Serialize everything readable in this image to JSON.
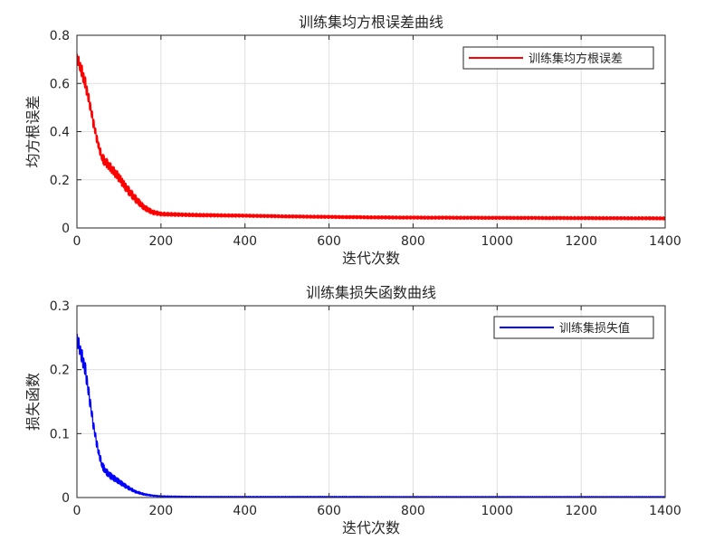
{
  "chart_data": [
    {
      "type": "line",
      "title": "训练集均方根误差曲线",
      "xlabel": "迭代次数",
      "ylabel": "均方根误差",
      "xlim": [
        0,
        1400
      ],
      "ylim": [
        0,
        0.8
      ],
      "xticks": [
        0,
        200,
        400,
        600,
        800,
        1000,
        1200,
        1400
      ],
      "yticks": [
        0,
        0.2,
        0.4,
        0.6,
        0.8
      ],
      "grid": true,
      "legend": "top-right",
      "series": [
        {
          "name": "训练集均方根误差",
          "color": "#ff0000",
          "x": [
            0,
            10,
            20,
            30,
            40,
            50,
            60,
            70,
            80,
            100,
            120,
            140,
            160,
            180,
            200,
            250,
            300,
            400,
            500,
            600,
            700,
            800,
            1000,
            1200,
            1400
          ],
          "y": [
            0.71,
            0.66,
            0.6,
            0.52,
            0.43,
            0.35,
            0.29,
            0.27,
            0.25,
            0.21,
            0.16,
            0.12,
            0.085,
            0.065,
            0.058,
            0.055,
            0.053,
            0.051,
            0.048,
            0.046,
            0.044,
            0.043,
            0.042,
            0.041,
            0.04
          ],
          "noise": [
            0.02,
            0.03,
            0.03,
            0.025,
            0.025,
            0.02,
            0.02,
            0.02,
            0.02,
            0.02,
            0.018,
            0.016,
            0.012,
            0.01,
            0.008,
            0.007,
            0.007,
            0.006,
            0.006,
            0.006,
            0.006,
            0.006,
            0.006,
            0.006,
            0.006
          ]
        }
      ]
    },
    {
      "type": "line",
      "title": "训练集损失函数曲线",
      "xlabel": "迭代次数",
      "ylabel": "损失函数",
      "xlim": [
        0,
        1400
      ],
      "ylim": [
        0,
        0.3
      ],
      "xticks": [
        0,
        200,
        400,
        600,
        800,
        1000,
        1200,
        1400
      ],
      "yticks": [
        0,
        0.1,
        0.2,
        0.3
      ],
      "grid": true,
      "legend": "top-right",
      "series": [
        {
          "name": "训练集损失值",
          "color": "#0000ff",
          "x": [
            0,
            10,
            20,
            30,
            40,
            50,
            60,
            70,
            80,
            100,
            120,
            140,
            160,
            180,
            200,
            250,
            300,
            400,
            600,
            800,
            1000,
            1200,
            1400
          ],
          "y": [
            0.25,
            0.225,
            0.2,
            0.155,
            0.11,
            0.075,
            0.05,
            0.04,
            0.034,
            0.025,
            0.016,
            0.009,
            0.005,
            0.003,
            0.002,
            0.0015,
            0.0013,
            0.0012,
            0.0012,
            0.0011,
            0.0011,
            0.0011,
            0.0011
          ],
          "noise": [
            0.01,
            0.012,
            0.012,
            0.01,
            0.008,
            0.007,
            0.006,
            0.005,
            0.005,
            0.004,
            0.003,
            0.002,
            0.0015,
            0.001,
            0.0008,
            0.0006,
            0.0005,
            0.0005,
            0.0005,
            0.0005,
            0.0005,
            0.0005,
            0.0005
          ]
        }
      ]
    }
  ]
}
